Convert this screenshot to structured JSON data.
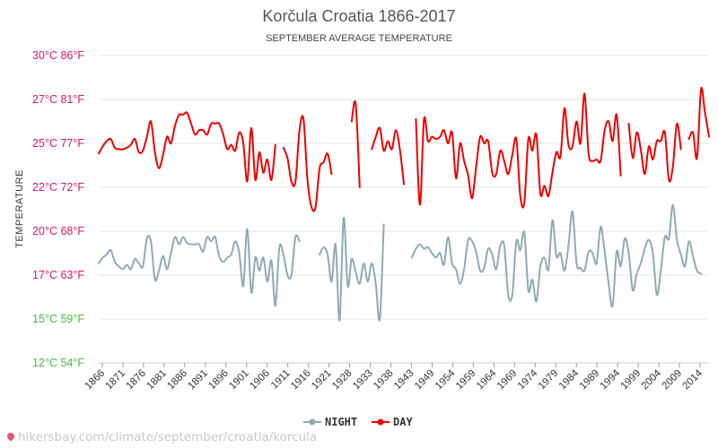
{
  "chart_data": {
    "type": "line",
    "title": "Korčula Croatia 1866-2017",
    "subtitle": "SEPTEMBER AVERAGE TEMPERATURE",
    "ylabel": "TEMPERATURE",
    "ylim": [
      12,
      31
    ],
    "grid": true,
    "legend_position": "bottom",
    "yticks": [
      {
        "value": 30,
        "label": "30°C 86°F",
        "color": "#e0156b"
      },
      {
        "value": 27,
        "label": "27°C 81°F",
        "color": "#e0156b"
      },
      {
        "value": 25,
        "label": "25°C 77°F",
        "color": "#e0156b"
      },
      {
        "value": 22,
        "label": "22°C 72°F",
        "color": "#e0156b"
      },
      {
        "value": 20,
        "label": "20°C 68°F",
        "color": "#e0156b"
      },
      {
        "value": 17,
        "label": "17°C 63°F",
        "color": "#e0156b"
      },
      {
        "value": 15,
        "label": "15°C 59°F",
        "color": "#44bb44"
      },
      {
        "value": 12,
        "label": "12°C 54°F",
        "color": "#44bb44"
      }
    ],
    "xticks": [
      1866,
      1871,
      1876,
      1881,
      1886,
      1891,
      1896,
      1901,
      1906,
      1911,
      1916,
      1921,
      1928,
      1933,
      1938,
      1943,
      1949,
      1954,
      1959,
      1964,
      1969,
      1974,
      1979,
      1984,
      1989,
      1994,
      1999,
      2004,
      2009,
      2014
    ],
    "series": [
      {
        "name": "DAY",
        "color": "#ee0000",
        "segments": [
          {
            "start": 1866,
            "values": [
              24.3,
              24.8,
              25.1,
              25.2,
              24.7,
              24.6,
              24.6,
              24.7,
              24.9,
              25.2,
              24.4,
              24.5,
              25.3,
              26.0,
              24.4,
              23.3,
              24.2,
              25.3,
              25.0,
              25.8,
              26.3,
              26.3,
              26.4,
              25.9,
              25.4,
              25.6,
              25.6,
              25.4,
              25.9,
              25.9,
              25.9,
              25.4,
              24.6,
              24.9,
              24.5,
              25.5,
              25.0,
              22.4,
              25.7,
              22.5,
              24.4,
              23.0,
              23.9,
              22.5,
              24.9
            ]
          },
          {
            "start": 1912,
            "values": [
              24.7,
              24.0,
              22.4,
              22.4,
              25.6,
              26.1,
              22.5,
              21.1,
              21.1,
              23.3,
              23.7,
              24.3,
              22.9
            ]
          },
          {
            "start": 1929,
            "values": [
              26.0,
              26.8,
              22.0
            ]
          },
          {
            "start": 1934,
            "values": [
              24.6,
              25.3,
              25.7,
              24.5,
              25.1,
              24.6,
              25.6,
              24.6,
              22.2
            ]
          },
          {
            "start": 1945,
            "values": [
              26.1,
              21.2,
              26.1,
              25.1,
              25.3,
              25.2,
              25.3,
              25.6,
              25.0,
              25.5,
              22.6,
              25.0,
              23.8,
              22.8,
              21.5,
              23.4,
              25.3,
              25.0,
              25.1,
              23.0,
              22.9,
              24.5,
              23.8,
              22.9,
              24.2,
              25.2,
              21.6,
              21.3,
              25.2,
              24.5,
              25.4,
              21.7,
              22.1,
              21.6,
              23.0,
              24.4,
              24.1,
              26.6,
              24.9,
              24.8,
              26.0,
              25.0,
              27.4,
              24.3,
              23.8,
              23.9,
              23.8,
              25.6,
              26.0,
              25.1,
              26.3,
              22.8
            ]
          },
          {
            "start": 1998,
            "values": [
              25.9,
              24.0,
              25.5,
              24.6,
              22.9,
              24.8,
              23.9,
              25.1,
              25.1,
              25.5,
              22.5,
              23.4,
              25.9,
              24.6
            ]
          },
          {
            "start": 2013,
            "values": [
              25.2,
              25.5,
              24.0,
              27.7,
              26.4,
              25.3
            ]
          }
        ]
      },
      {
        "name": "NIGHT",
        "color": "#90aab4",
        "segments": [
          {
            "start": 1866,
            "values": [
              17.8,
              18.2,
              18.4,
              18.7,
              17.9,
              17.6,
              17.4,
              17.7,
              17.4,
              18.1,
              17.8,
              17.6,
              19.5,
              19.3,
              16.8,
              17.3,
              18.3,
              17.4,
              18.5,
              19.6,
              19.1,
              19.6,
              19.2,
              19.1,
              19.1,
              19.1,
              18.6,
              19.6,
              19.3,
              19.6,
              18.3,
              17.9,
              18.2,
              18.4,
              19.3,
              18.5,
              16.5,
              20.1,
              16.2,
              18.2,
              17.3,
              18.2,
              16.7,
              18.0,
              15.6,
              18.9,
              18.4,
              17.0,
              17.0,
              19.6,
              19.3
            ]
          },
          {
            "start": 1921,
            "values": [
              18.4,
              18.9,
              18.4,
              16.7,
              19.1,
              14.9,
              20.6,
              16.5,
              18.1,
              17.2,
              16.6,
              17.8,
              16.7,
              17.8,
              16.6,
              15.0,
              20.3
            ]
          },
          {
            "start": 1944,
            "values": [
              18.2,
              18.8,
              19.1,
              18.8,
              18.9,
              18.5,
              18.2,
              18.5,
              17.7,
              19.6,
              17.8,
              17.4,
              16.6,
              17.4,
              19.4,
              19.3,
              18.6,
              17.3,
              17.5,
              18.8,
              18.4,
              17.4,
              19.0,
              19.0,
              16.1,
              16.1,
              19.3,
              18.7,
              19.9,
              16.3,
              16.8,
              15.8,
              17.6,
              18.2,
              17.4,
              20.5,
              18.3,
              18.5,
              17.3,
              19.0,
              20.9,
              17.8,
              17.5,
              17.3,
              18.6,
              18.5,
              17.8,
              20.2,
              18.6,
              16.6,
              15.6,
              18.6,
              17.6,
              19.5,
              18.5,
              16.3,
              17.1,
              17.8,
              18.8,
              19.4,
              18.5,
              16.1,
              17.3,
              19.6,
              19.5,
              21.2,
              19.4,
              18.4,
              17.6,
              19.3,
              18.3,
              17.3,
              17.1
            ]
          }
        ]
      }
    ]
  },
  "legend": {
    "night_label": "NIGHT",
    "day_label": "DAY"
  },
  "footer": {
    "text": "hikersbay.com/climate/september/croatia/korcula"
  }
}
